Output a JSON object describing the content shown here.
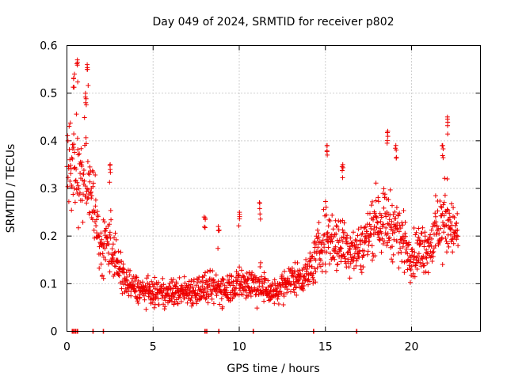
{
  "chart_data": {
    "type": "scatter",
    "title": "Day 049 of 2024, SRMTID for receiver p802",
    "xlabel": "GPS time / hours",
    "ylabel": "SRMTID / TECUs",
    "xlim": [
      0,
      24
    ],
    "ylim": [
      0,
      0.6
    ],
    "xticks": [
      0,
      5,
      10,
      15,
      20
    ],
    "yticks": [
      0,
      0.1,
      0.2,
      0.3,
      0.4,
      0.5,
      0.6
    ],
    "xtick_labels": [
      "0",
      "5",
      "10",
      "15",
      "20"
    ],
    "ytick_labels": [
      "0",
      "0.1",
      "0.2",
      "0.3",
      "0.4",
      "0.5",
      "0.6"
    ],
    "grid": true,
    "marker": "+",
    "color": "#ee0000",
    "series": [
      {
        "name": "SRMTID",
        "envelope": [
          {
            "x": 0.0,
            "median": 0.33,
            "spread": 0.12
          },
          {
            "x": 0.5,
            "median": 0.34,
            "spread": 0.17
          },
          {
            "x": 1.0,
            "median": 0.33,
            "spread": 0.16
          },
          {
            "x": 1.5,
            "median": 0.28,
            "spread": 0.12
          },
          {
            "x": 2.0,
            "median": 0.16,
            "spread": 0.08
          },
          {
            "x": 2.5,
            "median": 0.2,
            "spread": 0.12
          },
          {
            "x": 3.0,
            "median": 0.13,
            "spread": 0.06
          },
          {
            "x": 3.5,
            "median": 0.1,
            "spread": 0.05
          },
          {
            "x": 4.0,
            "median": 0.09,
            "spread": 0.04
          },
          {
            "x": 5.0,
            "median": 0.08,
            "spread": 0.04
          },
          {
            "x": 6.0,
            "median": 0.08,
            "spread": 0.04
          },
          {
            "x": 7.0,
            "median": 0.085,
            "spread": 0.045
          },
          {
            "x": 8.0,
            "median": 0.09,
            "spread": 0.05
          },
          {
            "x": 9.0,
            "median": 0.09,
            "spread": 0.05
          },
          {
            "x": 10.0,
            "median": 0.1,
            "spread": 0.05
          },
          {
            "x": 11.0,
            "median": 0.1,
            "spread": 0.06
          },
          {
            "x": 12.0,
            "median": 0.08,
            "spread": 0.04
          },
          {
            "x": 13.0,
            "median": 0.11,
            "spread": 0.05
          },
          {
            "x": 14.0,
            "median": 0.12,
            "spread": 0.05
          },
          {
            "x": 15.0,
            "median": 0.2,
            "spread": 0.1
          },
          {
            "x": 16.0,
            "median": 0.18,
            "spread": 0.09
          },
          {
            "x": 17.0,
            "median": 0.17,
            "spread": 0.07
          },
          {
            "x": 18.0,
            "median": 0.24,
            "spread": 0.1
          },
          {
            "x": 19.0,
            "median": 0.22,
            "spread": 0.1
          },
          {
            "x": 20.0,
            "median": 0.16,
            "spread": 0.07
          },
          {
            "x": 21.0,
            "median": 0.18,
            "spread": 0.08
          },
          {
            "x": 22.0,
            "median": 0.24,
            "spread": 0.12
          },
          {
            "x": 22.7,
            "median": 0.2,
            "spread": 0.05
          }
        ],
        "peaks": [
          {
            "x": 0.6,
            "y": 0.57
          },
          {
            "x": 1.2,
            "y": 0.56
          },
          {
            "x": 1.1,
            "y": 0.5
          },
          {
            "x": 0.4,
            "y": 0.54
          },
          {
            "x": 2.5,
            "y": 0.35
          },
          {
            "x": 8.0,
            "y": 0.24
          },
          {
            "x": 8.8,
            "y": 0.22
          },
          {
            "x": 10.0,
            "y": 0.25
          },
          {
            "x": 11.2,
            "y": 0.27
          },
          {
            "x": 15.1,
            "y": 0.39
          },
          {
            "x": 16.0,
            "y": 0.35
          },
          {
            "x": 18.6,
            "y": 0.42
          },
          {
            "x": 19.1,
            "y": 0.39
          },
          {
            "x": 21.8,
            "y": 0.39
          },
          {
            "x": 22.1,
            "y": 0.45
          }
        ],
        "zero_values_x": [
          0.3,
          0.35,
          0.45,
          0.5,
          0.6,
          1.5,
          2.1,
          8.0,
          8.1,
          8.8,
          10.8,
          14.3,
          16.8
        ]
      }
    ]
  }
}
